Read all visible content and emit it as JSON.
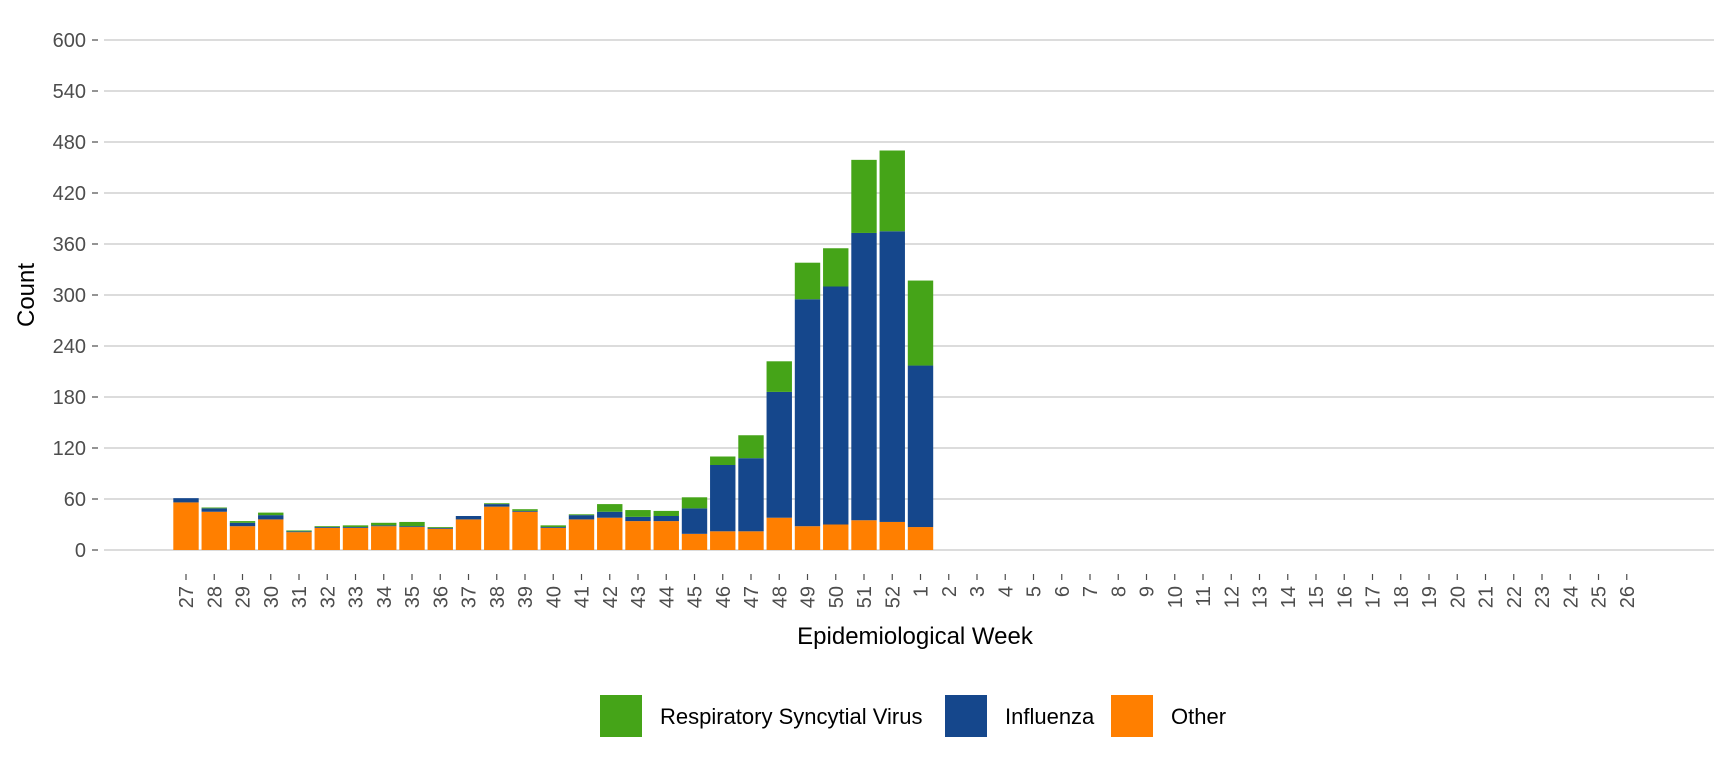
{
  "chart_data": {
    "type": "bar",
    "stacked": true,
    "xlabel": "Epidemiological Week",
    "ylabel": "Count",
    "ylim": [
      0,
      600
    ],
    "yticks": [
      0,
      60,
      120,
      180,
      240,
      300,
      360,
      420,
      480,
      540,
      600
    ],
    "grid": "horizontal",
    "legend_position": "bottom",
    "categories": [
      "27",
      "28",
      "29",
      "30",
      "31",
      "32",
      "33",
      "34",
      "35",
      "36",
      "37",
      "38",
      "39",
      "40",
      "41",
      "42",
      "43",
      "44",
      "45",
      "46",
      "47",
      "48",
      "49",
      "50",
      "51",
      "52",
      "1",
      "2",
      "3",
      "4",
      "5",
      "6",
      "7",
      "8",
      "9",
      "10",
      "11",
      "12",
      "13",
      "14",
      "15",
      "16",
      "17",
      "18",
      "19",
      "20",
      "21",
      "22",
      "23",
      "24",
      "25",
      "26"
    ],
    "series": [
      {
        "name": "Other",
        "color": "#ff7f00",
        "values": [
          56,
          45,
          28,
          36,
          21,
          26,
          26,
          28,
          27,
          25,
          36,
          51,
          45,
          26,
          36,
          38,
          34,
          34,
          19,
          22,
          22,
          38,
          28,
          30,
          35,
          33,
          27,
          0,
          0,
          0,
          0,
          0,
          0,
          0,
          0,
          0,
          0,
          0,
          0,
          0,
          0,
          0,
          0,
          0,
          0,
          0,
          0,
          0,
          0,
          0,
          0,
          0
        ]
      },
      {
        "name": "Influenza",
        "color": "#15478c",
        "values": [
          5,
          4,
          4,
          5,
          1,
          1,
          1,
          1,
          1,
          1,
          4,
          3,
          1,
          1,
          5,
          7,
          5,
          6,
          30,
          78,
          86,
          148,
          267,
          280,
          338,
          342,
          190,
          0,
          0,
          0,
          0,
          0,
          0,
          0,
          0,
          0,
          0,
          0,
          0,
          0,
          0,
          0,
          0,
          0,
          0,
          0,
          0,
          0,
          0,
          0,
          0,
          0
        ]
      },
      {
        "name": "Respiratory Syncytial Virus",
        "color": "#45a418",
        "values": [
          0,
          1,
          2,
          3,
          1,
          1,
          2,
          3,
          5,
          1,
          0,
          1,
          2,
          2,
          1,
          9,
          8,
          6,
          13,
          10,
          27,
          36,
          43,
          45,
          86,
          95,
          100,
          0,
          0,
          0,
          0,
          0,
          0,
          0,
          0,
          0,
          0,
          0,
          0,
          0,
          0,
          0,
          0,
          0,
          0,
          0,
          0,
          0,
          0,
          0,
          0,
          0
        ]
      }
    ],
    "legend": [
      {
        "label": "Respiratory Syncytial Virus",
        "color": "#45a418"
      },
      {
        "label": "Influenza",
        "color": "#15478c"
      },
      {
        "label": "Other",
        "color": "#ff7f00"
      }
    ]
  }
}
